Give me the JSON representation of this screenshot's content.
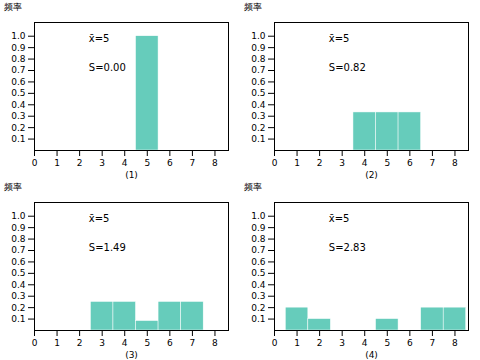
{
  "chart_data": [
    {
      "type": "bar",
      "xlabel": "(1)",
      "ylabel": "频率",
      "annotations": [
        "x̄=5",
        "S=0.00"
      ],
      "x": [
        5
      ],
      "values": [
        1.0
      ],
      "color": "#66ccbb",
      "xlim": [
        0,
        8.6
      ],
      "xticks": [
        0,
        1,
        2,
        3,
        4,
        5,
        6,
        7,
        8
      ],
      "ylim": [
        0,
        1.12
      ],
      "yticks": [
        0.1,
        0.2,
        0.3,
        0.4,
        0.5,
        0.6,
        0.7,
        0.8,
        0.9,
        {
          "value": 1.0,
          "label": "1.0"
        }
      ]
    },
    {
      "type": "bar",
      "xlabel": "(2)",
      "ylabel": "频率",
      "annotations": [
        "x̄=5",
        "S=0.82"
      ],
      "x": [
        4,
        5,
        6
      ],
      "values": [
        0.333,
        0.333,
        0.333
      ],
      "color": "#66ccbb",
      "xlim": [
        0,
        8.6
      ],
      "xticks": [
        0,
        1,
        2,
        3,
        4,
        5,
        6,
        7,
        8
      ],
      "ylim": [
        0,
        1.12
      ],
      "yticks": [
        0.1,
        0.2,
        0.3,
        0.4,
        0.5,
        0.6,
        0.7,
        0.8,
        0.9,
        {
          "value": 1.0,
          "label": "1.0"
        }
      ]
    },
    {
      "type": "bar",
      "xlabel": "(3)",
      "ylabel": "频率",
      "annotations": [
        "x̄=5",
        "S=1.49"
      ],
      "x": [
        3,
        4,
        5,
        6,
        7
      ],
      "values": [
        0.25,
        0.25,
        0.083,
        0.25,
        0.25
      ],
      "color": "#66ccbb",
      "xlim": [
        0,
        8.6
      ],
      "xticks": [
        0,
        1,
        2,
        3,
        4,
        5,
        6,
        7,
        8
      ],
      "ylim": [
        0,
        1.12
      ],
      "yticks": [
        0.1,
        0.2,
        0.3,
        0.4,
        0.5,
        0.6,
        0.7,
        0.8,
        0.9,
        {
          "value": 1.0,
          "label": "1.0"
        }
      ]
    },
    {
      "type": "bar",
      "xlabel": "(4)",
      "ylabel": "频率",
      "annotations": [
        "x̄=5",
        "S=2.83"
      ],
      "x": [
        1,
        2,
        5,
        7,
        8
      ],
      "values": [
        0.2,
        0.1,
        0.1,
        0.2,
        0.2
      ],
      "color": "#66ccbb",
      "xlim": [
        0,
        8.6
      ],
      "xticks": [
        0,
        1,
        2,
        3,
        4,
        5,
        6,
        7,
        8
      ],
      "ylim": [
        0,
        1.12
      ],
      "yticks": [
        0.1,
        0.2,
        0.3,
        0.4,
        0.5,
        0.6,
        0.7,
        0.8,
        0.9,
        {
          "value": 1.0,
          "label": "1.0"
        }
      ]
    }
  ]
}
